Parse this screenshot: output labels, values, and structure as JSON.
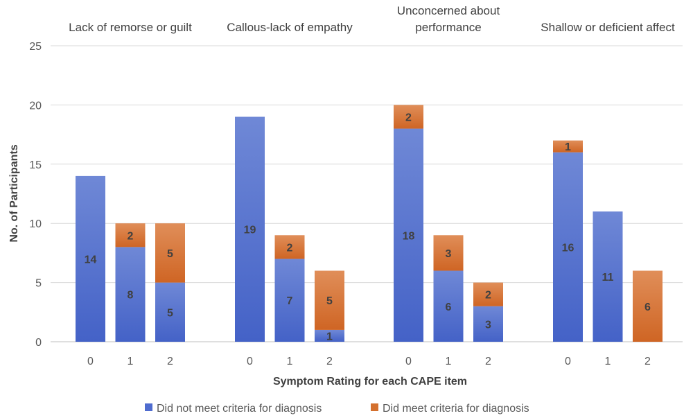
{
  "chart_data": {
    "type": "bar",
    "stacked": true,
    "title": "",
    "xlabel": "Symptom Rating for each CAPE item",
    "ylabel": "No. of Participants",
    "ylim": [
      0,
      25
    ],
    "yticks": [
      0,
      5,
      10,
      15,
      20,
      25
    ],
    "grid": true,
    "legend_position": "bottom",
    "groups": [
      {
        "label": "Lack of remorse or guilt",
        "categories": [
          "0",
          "1",
          "2"
        ],
        "not_met": [
          14,
          8,
          5
        ],
        "met": [
          0,
          2,
          5
        ]
      },
      {
        "label": "Callous-lack of empathy",
        "categories": [
          "0",
          "1",
          "2"
        ],
        "not_met": [
          19,
          7,
          1
        ],
        "met": [
          0,
          2,
          5
        ]
      },
      {
        "label": "Unconcerned about performance",
        "label_lines": [
          "Unconcerned about",
          "performance"
        ],
        "categories": [
          "0",
          "1",
          "2"
        ],
        "not_met": [
          18,
          6,
          3
        ],
        "met": [
          2,
          3,
          2
        ]
      },
      {
        "label": "Shallow or deficient affect",
        "categories": [
          "0",
          "1",
          "2"
        ],
        "not_met": [
          16,
          11,
          0
        ],
        "met": [
          1,
          0,
          6
        ]
      }
    ],
    "series": [
      {
        "name": "Did not meet criteria for diagnosis",
        "key": "not_met",
        "color": "#4f6ccf"
      },
      {
        "name": "Did meet criteria for diagnosis",
        "key": "met",
        "color": "#d4702e"
      }
    ]
  }
}
